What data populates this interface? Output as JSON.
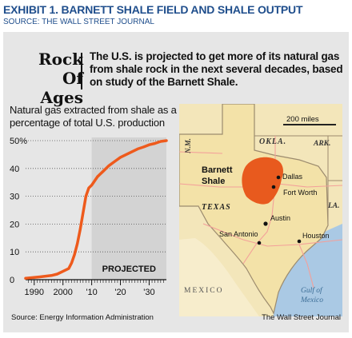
{
  "exhibit": {
    "title": "EXHIBIT 1. BARNETT SHALE FIELD AND SHALE OUTPUT",
    "source": "SOURCE: THE WALL STREET JOURNAL"
  },
  "headline": {
    "kicker_line1": "Rock",
    "kicker_line2": "Of Ages",
    "text": "The U.S. is projected to get more of its natural gas from shale rock in the next several decades, based on study of the Barnett Shale."
  },
  "chart_data": {
    "type": "area",
    "title": "Natural gas extracted from shale as a percentage of total U.S. production",
    "xlabel": "",
    "ylabel": "",
    "xlim": [
      1987,
      2036
    ],
    "ylim": [
      0,
      50
    ],
    "x_ticks": [
      1990,
      2000,
      2010,
      2020,
      2030
    ],
    "x_tick_labels": [
      "1990",
      "2000",
      "'10",
      "'20",
      "'30"
    ],
    "y_ticks": [
      0,
      10,
      20,
      30,
      40,
      50
    ],
    "y_tick_labels": [
      "0",
      "10",
      "20",
      "30",
      "40",
      "50%"
    ],
    "grid": "horizontal-dotted",
    "projected_from": 2010,
    "projected_label": "PROJECTED",
    "series": [
      {
        "color": "#ee5a1c",
        "x": [
          1987,
          1992,
          1996,
          1998,
          2000,
          2002,
          2003,
          2004,
          2005,
          2006,
          2007,
          2008,
          2009,
          2010,
          2012,
          2014,
          2016,
          2018,
          2020,
          2022,
          2024,
          2026,
          2028,
          2030,
          2032,
          2034,
          2036
        ],
        "y": [
          0.5,
          1,
          1.5,
          2,
          3,
          4,
          6,
          9,
          13,
          18,
          24,
          30,
          33,
          34,
          37,
          39,
          41,
          42.5,
          44,
          45,
          46,
          47,
          47.7,
          48.5,
          49,
          49.7,
          50
        ]
      }
    ]
  },
  "map": {
    "scale_label": "200 miles",
    "states": {
      "okla": "OKLA.",
      "ark": "ARK.",
      "nm": "N.M.",
      "la": "LA.",
      "texas": "TEXAS"
    },
    "shale_label_1": "Barnett",
    "shale_label_2": "Shale",
    "countries": {
      "mexico": "MEXICO"
    },
    "gulf_1": "Gulf of",
    "gulf_2": "Mexico",
    "cities": {
      "dallas": "Dallas",
      "fort_worth": "Fort Worth",
      "austin": "Austin",
      "san_antonio": "San Antonio",
      "houston": "Houston"
    },
    "colors": {
      "land": "#f3e6ba",
      "water": "#aac9e4",
      "shale": "#e85a1e",
      "roads": "#f3a09a"
    }
  },
  "footer": {
    "source": "Source: Energy Information Administration",
    "credit": "The Wall Street Journal"
  }
}
